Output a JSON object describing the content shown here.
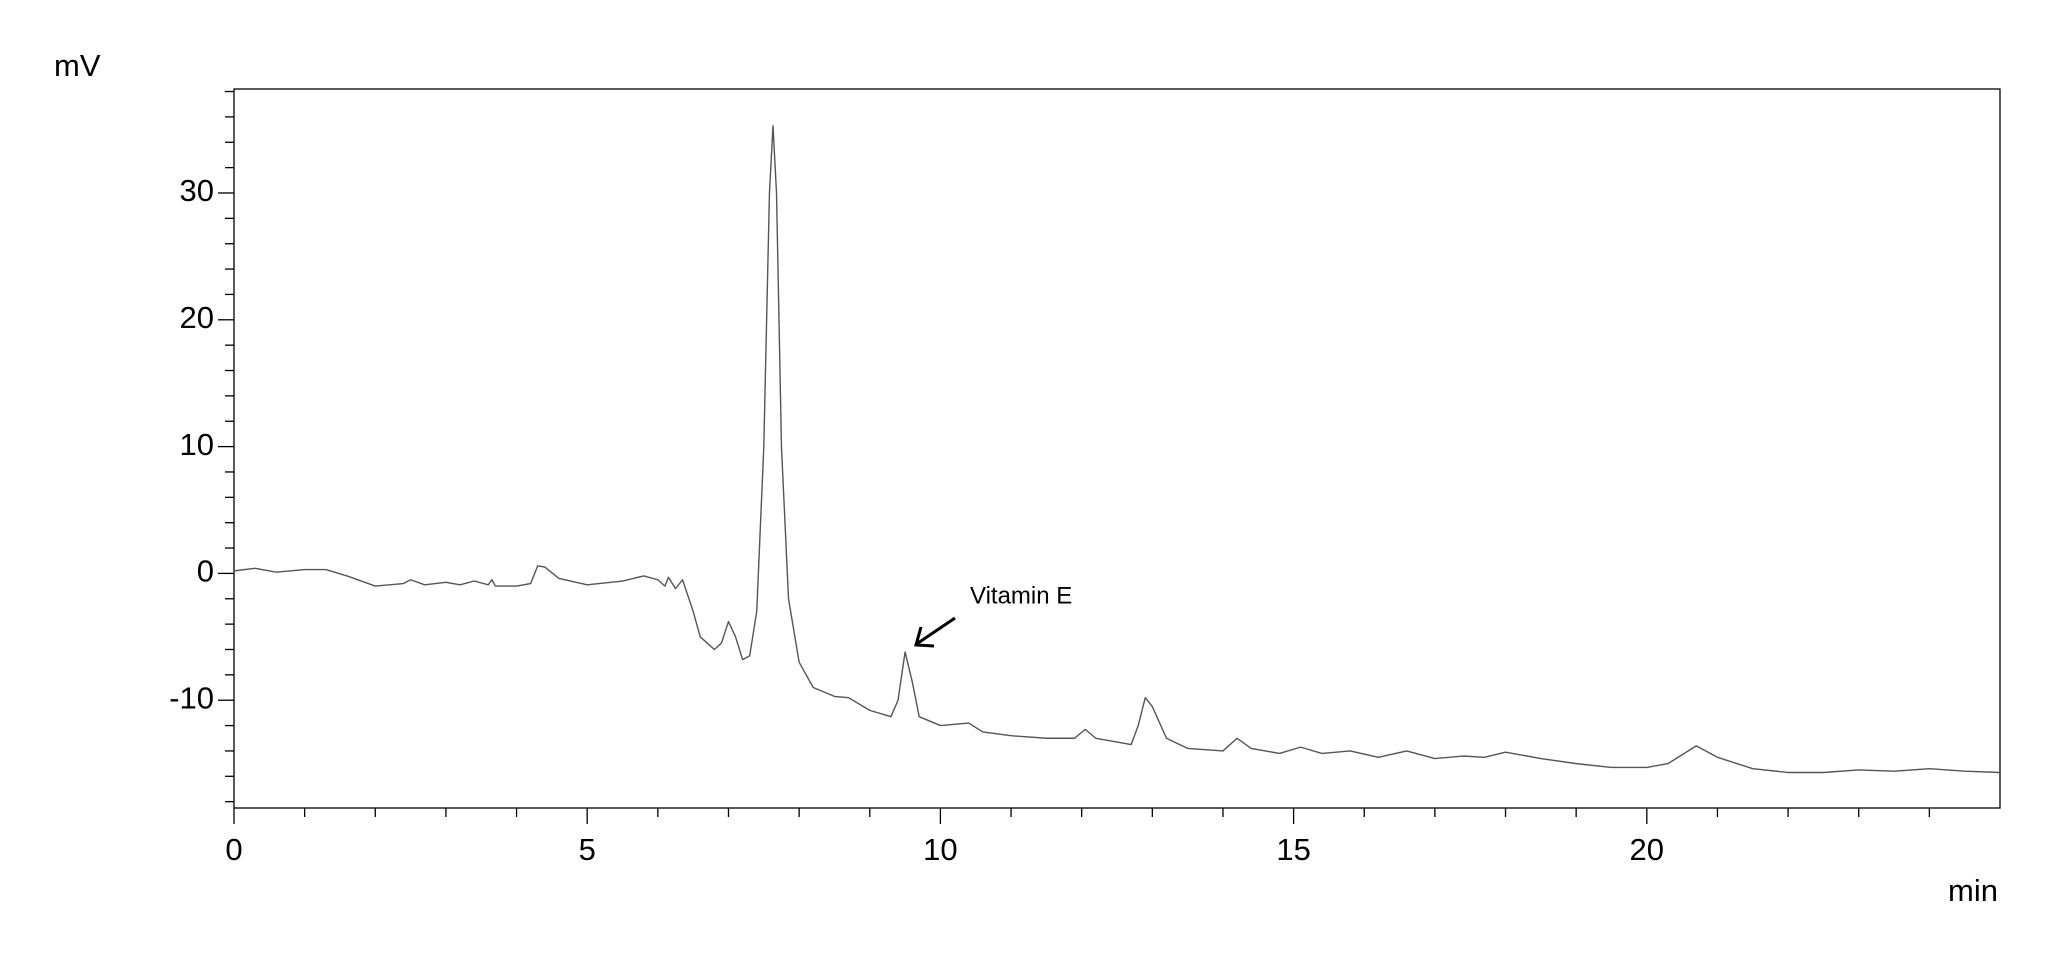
{
  "chart_data": {
    "type": "line",
    "y_label": "mV",
    "x_label": "min",
    "annotation": "Vitamin E",
    "color": "#555555",
    "x": [
      0,
      0.3,
      0.6,
      1.0,
      1.3,
      1.6,
      2.0,
      2.4,
      2.5,
      2.7,
      3.0,
      3.2,
      3.4,
      3.6,
      3.65,
      3.7,
      4.0,
      4.2,
      4.3,
      4.4,
      4.6,
      5.0,
      5.5,
      5.8,
      6.0,
      6.1,
      6.15,
      6.25,
      6.35,
      6.5,
      6.6,
      6.8,
      6.9,
      7.0,
      7.1,
      7.2,
      7.3,
      7.4,
      7.5,
      7.58,
      7.63,
      7.68,
      7.75,
      7.85,
      8.0,
      8.2,
      8.5,
      8.7,
      9.0,
      9.3,
      9.4,
      9.5,
      9.6,
      9.7,
      10.0,
      10.4,
      10.6,
      11.0,
      11.5,
      11.9,
      12.05,
      12.2,
      12.7,
      12.8,
      12.9,
      13.0,
      13.2,
      13.5,
      14.0,
      14.2,
      14.4,
      14.8,
      15.1,
      15.4,
      15.8,
      16.2,
      16.6,
      17.0,
      17.4,
      17.7,
      18.0,
      18.5,
      19.0,
      19.5,
      20.0,
      20.3,
      20.7,
      21.0,
      21.5,
      22.0,
      22.5,
      23.0,
      23.5,
      24.0,
      24.5,
      25.0
    ],
    "values": [
      0.2,
      0.4,
      0.1,
      0.3,
      0.3,
      -0.2,
      -1.0,
      -0.8,
      -0.5,
      -0.9,
      -0.7,
      -0.9,
      -0.6,
      -0.9,
      -0.5,
      -1.0,
      -1.0,
      -0.8,
      0.6,
      0.5,
      -0.4,
      -0.9,
      -0.6,
      -0.2,
      -0.5,
      -1.0,
      -0.3,
      -1.2,
      -0.5,
      -3.0,
      -5.0,
      -6.0,
      -5.5,
      -3.8,
      -5.0,
      -6.8,
      -6.5,
      -3.0,
      10,
      30,
      35.3,
      30,
      10,
      -2,
      -7,
      -9,
      -9.7,
      -9.8,
      -10.8,
      -11.3,
      -10.0,
      -6.2,
      -8.5,
      -11.3,
      -12.0,
      -11.8,
      -12.5,
      -12.8,
      -13.0,
      -13.0,
      -12.3,
      -13.0,
      -13.5,
      -12.0,
      -9.8,
      -10.5,
      -13.0,
      -13.8,
      -14.0,
      -13.0,
      -13.8,
      -14.2,
      -13.7,
      -14.2,
      -14.0,
      -14.5,
      -14.0,
      -14.6,
      -14.4,
      -14.5,
      -14.1,
      -14.6,
      -15.0,
      -15.3,
      -15.3,
      -15.0,
      -13.6,
      -14.5,
      -15.4,
      -15.7,
      -15.7,
      -15.5,
      -15.6,
      -15.4,
      -15.6,
      -15.7
    ],
    "xlim": [
      0,
      25
    ],
    "ylim": [
      -18.5,
      38.2
    ],
    "xticks": [
      0,
      5,
      10,
      15,
      20
    ],
    "yticks": [
      -10,
      0,
      10,
      20,
      30
    ],
    "xminorticks": [
      1,
      2,
      3,
      4,
      6,
      7,
      8,
      9,
      11,
      12,
      13,
      14,
      16,
      17,
      18,
      19,
      21,
      22,
      23,
      24
    ],
    "yminorticks": [
      -18,
      -16,
      -14,
      -12,
      -8,
      -6,
      -4,
      -2,
      2,
      4,
      6,
      8,
      12,
      14,
      16,
      18,
      22,
      24,
      26,
      28,
      32,
      34,
      36,
      38
    ]
  }
}
